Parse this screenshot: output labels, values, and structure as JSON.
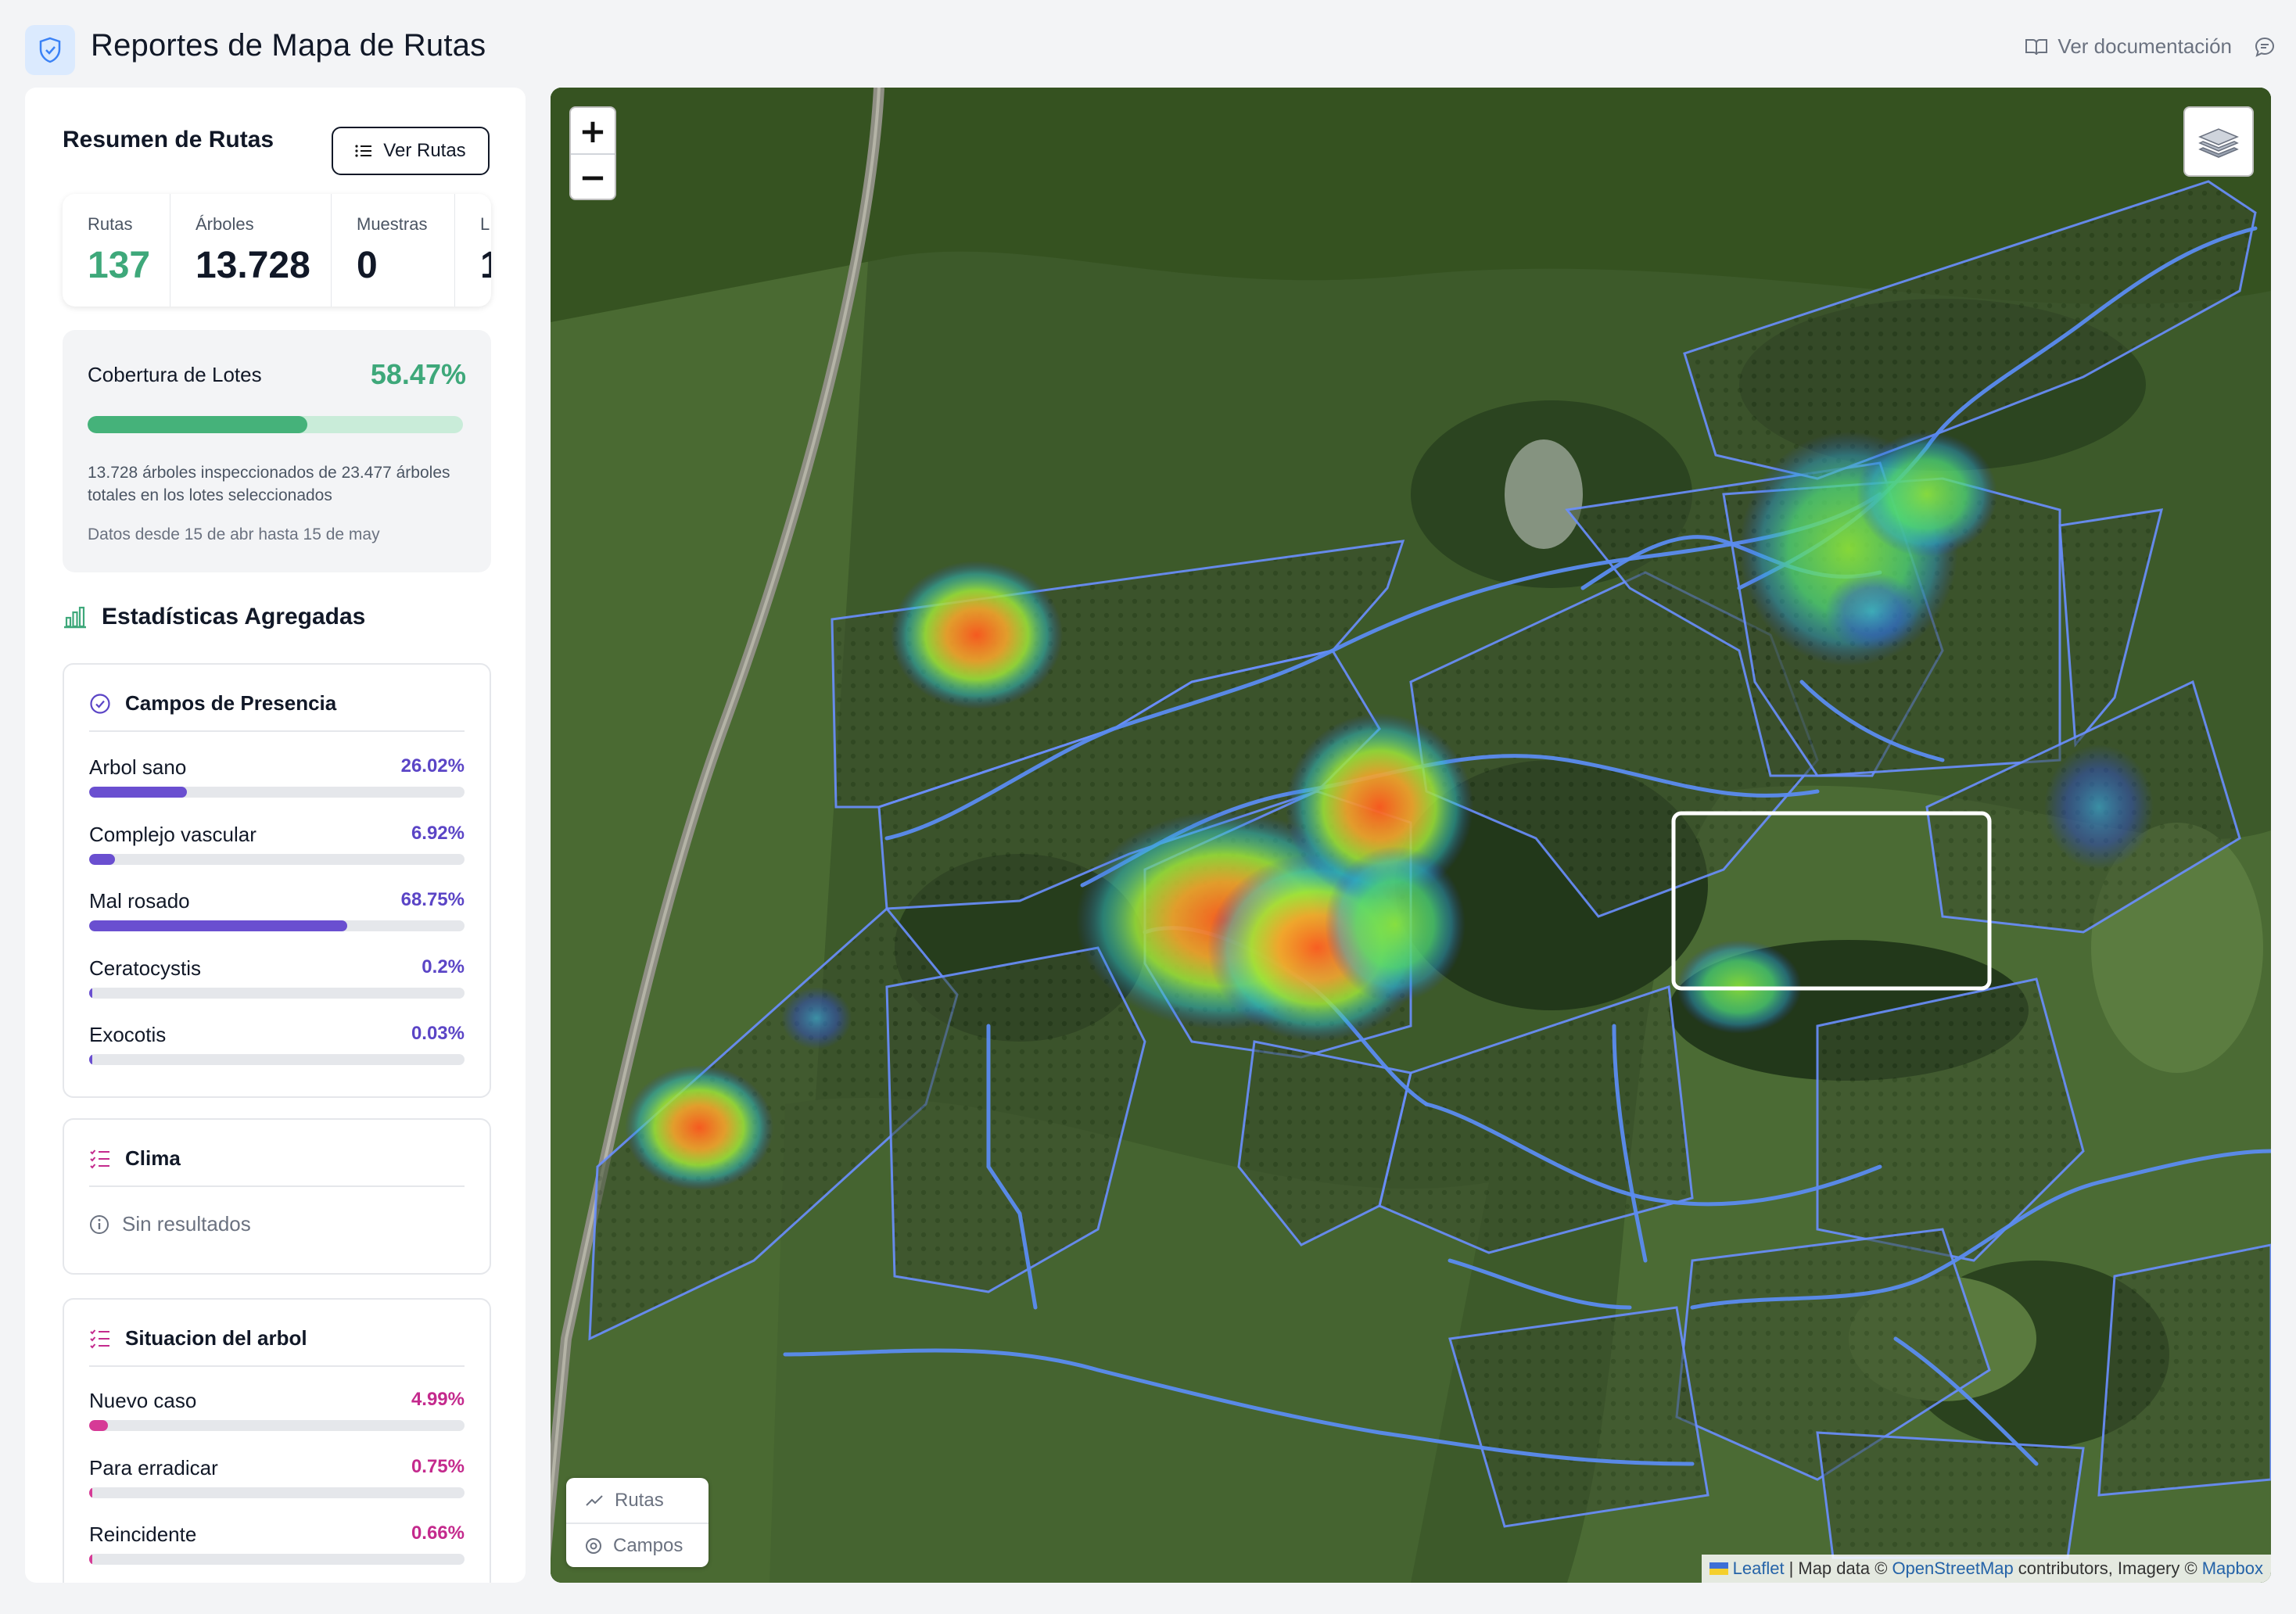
{
  "header": {
    "title": "Reportes de Mapa de Rutas",
    "doc_link": "Ver documentación"
  },
  "summary": {
    "title": "Resumen de Rutas",
    "ver_rutas": "Ver Rutas",
    "stats": [
      {
        "label": "Rutas",
        "value": "137"
      },
      {
        "label": "Árboles",
        "value": "13.728"
      },
      {
        "label": "Muestras",
        "value": "0"
      },
      {
        "label": "L",
        "value": "1"
      }
    ]
  },
  "coverage": {
    "title": "Cobertura de Lotes",
    "percent": "58.47%",
    "fraction": 0.5847,
    "description": "13.728 árboles inspeccionados de 23.477 árboles totales en los lotes seleccionados",
    "dates": "Datos desde 15 de abr hasta 15 de may"
  },
  "aggregated": {
    "title": "Estadísticas Agregadas"
  },
  "presence": {
    "title": "Campos de Presencia",
    "items": [
      {
        "label": "Arbol sano",
        "value": "26.02%",
        "fraction": 0.2602
      },
      {
        "label": "Complejo vascular",
        "value": "6.92%",
        "fraction": 0.0692
      },
      {
        "label": "Mal rosado",
        "value": "68.75%",
        "fraction": 0.6875
      },
      {
        "label": "Ceratocystis",
        "value": "0.2%",
        "fraction": 0.002
      },
      {
        "label": "Exocotis",
        "value": "0.03%",
        "fraction": 0.0003
      }
    ]
  },
  "climate": {
    "title": "Clima",
    "empty": "Sin resultados"
  },
  "tree_status": {
    "title": "Situacion del arbol",
    "items": [
      {
        "label": "Nuevo caso",
        "value": "4.99%",
        "fraction": 0.0499
      },
      {
        "label": "Para erradicar",
        "value": "0.75%",
        "fraction": 0.0075
      },
      {
        "label": "Reincidente",
        "value": "0.66%",
        "fraction": 0.0066
      }
    ]
  },
  "map": {
    "zoom_in": "+",
    "zoom_out": "−",
    "legend": [
      "Rutas",
      "Campos"
    ],
    "attribution": {
      "leaflet": "Leaflet",
      "sep": "|",
      "map_data": "Map data ©",
      "osm": "OpenStreetMap",
      "contributors": "contributors, Imagery ©",
      "mapbox": "Mapbox"
    }
  },
  "colors": {
    "accent_green": "#3ea87a",
    "purple": "#5b45c6",
    "pink": "#c42a8d",
    "route_blue": "#5b8cf0"
  }
}
